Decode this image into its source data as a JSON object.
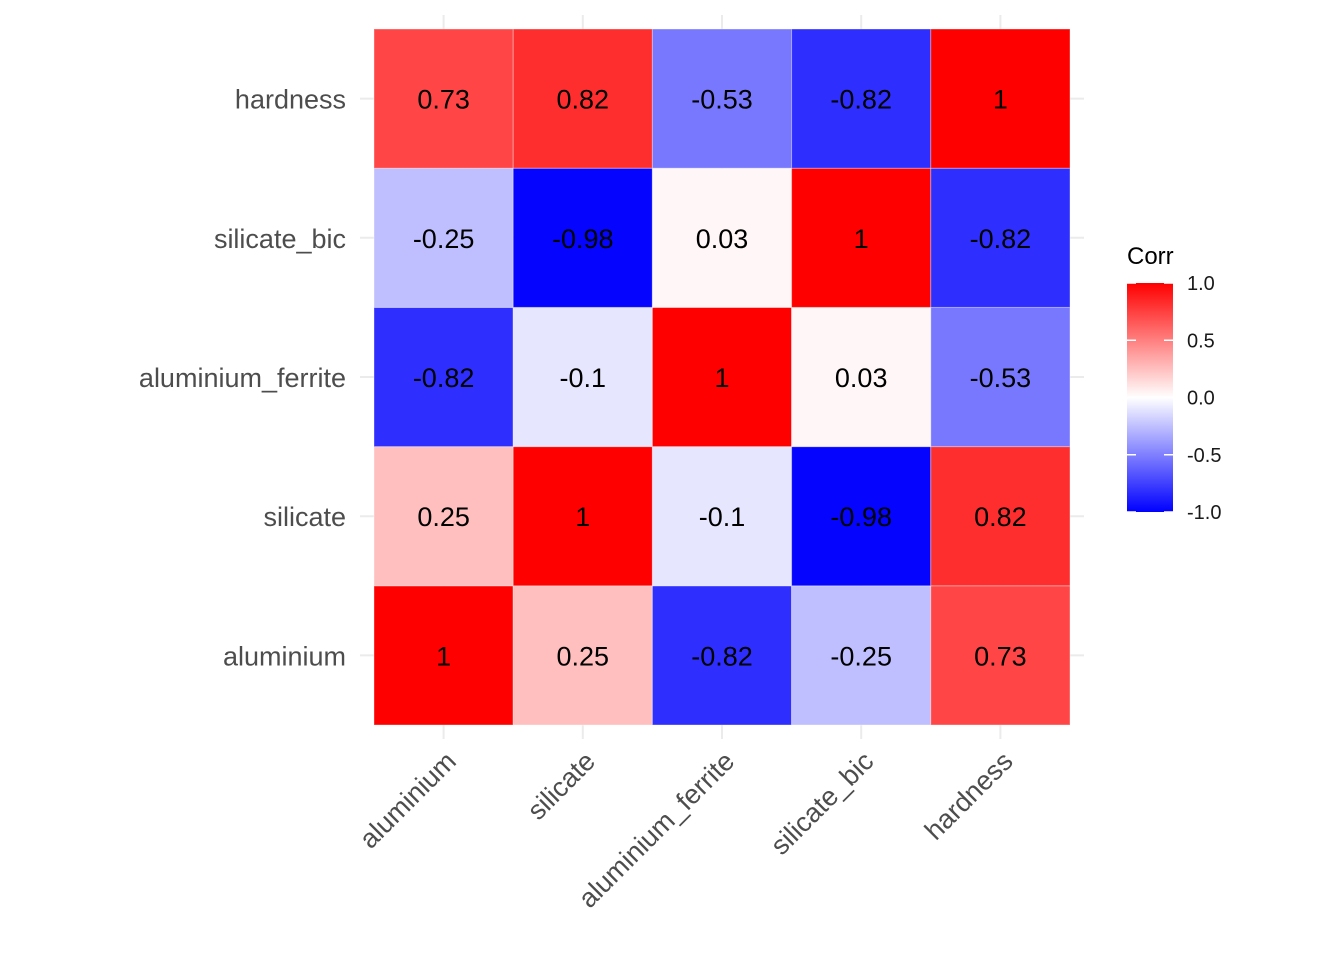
{
  "chart_data": {
    "type": "heatmap",
    "x_categories": [
      "aluminium",
      "silicate",
      "aluminium_ferrite",
      "silicate_bic",
      "hardness"
    ],
    "y_categories": [
      "aluminium",
      "silicate",
      "aluminium_ferrite",
      "silicate_bic",
      "hardness"
    ],
    "matrix": [
      [
        1,
        0.25,
        -0.82,
        -0.25,
        0.73
      ],
      [
        0.25,
        1,
        -0.1,
        -0.98,
        0.82
      ],
      [
        -0.82,
        -0.1,
        1,
        0.03,
        -0.53
      ],
      [
        -0.25,
        -0.98,
        0.03,
        1,
        -0.82
      ],
      [
        0.73,
        0.82,
        -0.53,
        -0.82,
        1
      ]
    ],
    "cell_labels": [
      [
        "1",
        "0.25",
        "-0.82",
        "-0.25",
        "0.73"
      ],
      [
        "0.25",
        "1",
        "-0.1",
        "-0.98",
        "0.82"
      ],
      [
        "-0.82",
        "-0.1",
        "1",
        "0.03",
        "-0.53"
      ],
      [
        "-0.25",
        "-0.98",
        "0.03",
        "1",
        "-0.82"
      ],
      [
        "0.73",
        "0.82",
        "-0.53",
        "-0.82",
        "1"
      ]
    ],
    "legend": {
      "title": "Corr",
      "ticks": [
        "1.0",
        "0.5",
        "0.0",
        "-0.5",
        "-1.0"
      ],
      "tick_values": [
        1,
        0.5,
        0,
        -0.5,
        -1
      ],
      "range": [
        -1,
        1
      ],
      "placement": "right"
    },
    "colors": {
      "low": "#0000ff",
      "mid": "#ffffff",
      "high": "#ff0000",
      "grid": "#ebebeb"
    },
    "grid": true
  }
}
